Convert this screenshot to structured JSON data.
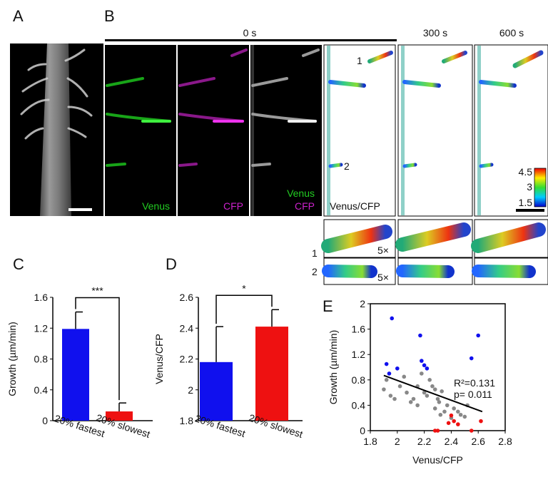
{
  "panels": {
    "a": {
      "label": "A"
    },
    "b": {
      "label": "B",
      "timepoints": [
        "0 s",
        "300 s",
        "600 s"
      ],
      "channel_labels": {
        "venus": "Venus",
        "cfp": "CFP",
        "merge_venus": "Venus",
        "merge_cfp": "CFP",
        "ratio": "Venus/CFP"
      },
      "root_hair_labels": [
        "1",
        "2"
      ],
      "zoom_label": "5×",
      "colorbar_ticks": [
        "4.5",
        "3",
        "1.5"
      ],
      "colors": {
        "venus": "#22cc22",
        "cfp": "#cc22cc",
        "ratio_text": "#111111"
      }
    },
    "c": {
      "label": "C"
    },
    "d": {
      "label": "D"
    },
    "e": {
      "label": "E"
    }
  },
  "chart_data": [
    {
      "id": "C",
      "type": "bar",
      "categories": [
        "20% fastest",
        "20% slowest"
      ],
      "values": [
        1.19,
        0.12
      ],
      "errors": [
        0.22,
        0.11
      ],
      "colors": [
        "#1010ee",
        "#ee1111"
      ],
      "ylabel": "Growth (µm/min)",
      "ylim": [
        0,
        1.6
      ],
      "yticks": [
        "0",
        "0.4",
        "0.8",
        "1.2",
        "1.6"
      ],
      "significance": "***"
    },
    {
      "id": "D",
      "type": "bar",
      "categories": [
        "20% fastest",
        "20% slowest"
      ],
      "values": [
        2.18,
        2.41
      ],
      "errors": [
        0.23,
        0.11
      ],
      "colors": [
        "#1010ee",
        "#ee1111"
      ],
      "ylabel": "Venus/CFP",
      "ylim": [
        1.8,
        2.6
      ],
      "yticks": [
        "1.8",
        "2",
        "2.2",
        "2.4",
        "2.6"
      ],
      "significance": "*"
    },
    {
      "id": "E",
      "type": "scatter",
      "xlabel": "Venus/CFP",
      "ylabel": "Growth (µm/min)",
      "xlim": [
        1.8,
        2.8
      ],
      "ylim": [
        0,
        2
      ],
      "xticks": [
        "1.8",
        "2",
        "2.2",
        "2.4",
        "2.6",
        "2.8"
      ],
      "yticks": [
        "0",
        "0.4",
        "0.8",
        "1.2",
        "1.6",
        "2"
      ],
      "annotation": {
        "r2": "R²=0.131",
        "p": "p= 0.011"
      },
      "fit": {
        "x0": 1.9,
        "y0": 0.87,
        "x1": 2.63,
        "y1": 0.3
      },
      "series": [
        {
          "color": "#1010ee",
          "points": [
            [
              1.92,
              1.05
            ],
            [
              1.94,
              0.9
            ],
            [
              1.96,
              1.77
            ],
            [
              2.0,
              0.98
            ],
            [
              2.17,
              1.5
            ],
            [
              2.18,
              1.1
            ],
            [
              2.2,
              1.03
            ],
            [
              2.22,
              0.98
            ],
            [
              2.55,
              1.14
            ],
            [
              2.6,
              1.5
            ]
          ]
        },
        {
          "color": "#888888",
          "points": [
            [
              1.9,
              0.65
            ],
            [
              1.92,
              0.8
            ],
            [
              1.95,
              0.55
            ],
            [
              1.98,
              0.5
            ],
            [
              2.02,
              0.7
            ],
            [
              2.05,
              0.85
            ],
            [
              2.07,
              0.6
            ],
            [
              2.1,
              0.45
            ],
            [
              2.12,
              0.5
            ],
            [
              2.15,
              0.7
            ],
            [
              2.18,
              0.9
            ],
            [
              2.2,
              0.6
            ],
            [
              2.22,
              0.55
            ],
            [
              2.24,
              0.8
            ],
            [
              2.26,
              0.7
            ],
            [
              2.28,
              0.65
            ],
            [
              2.3,
              0.5
            ],
            [
              2.31,
              0.45
            ],
            [
              2.33,
              0.62
            ],
            [
              2.35,
              0.3
            ],
            [
              2.37,
              0.4
            ],
            [
              2.4,
              0.2
            ],
            [
              2.42,
              0.35
            ],
            [
              2.45,
              0.3
            ],
            [
              2.47,
              0.25
            ],
            [
              2.5,
              0.22
            ],
            [
              2.52,
              0.4
            ],
            [
              2.28,
              0.35
            ],
            [
              2.32,
              0.25
            ],
            [
              2.15,
              0.4
            ]
          ]
        },
        {
          "color": "#ee1111",
          "points": [
            [
              2.28,
              0.0
            ],
            [
              2.3,
              0.0
            ],
            [
              2.38,
              0.12
            ],
            [
              2.4,
              0.24
            ],
            [
              2.42,
              0.15
            ],
            [
              2.45,
              0.1
            ],
            [
              2.55,
              0.0
            ],
            [
              2.62,
              0.15
            ]
          ]
        }
      ]
    }
  ]
}
